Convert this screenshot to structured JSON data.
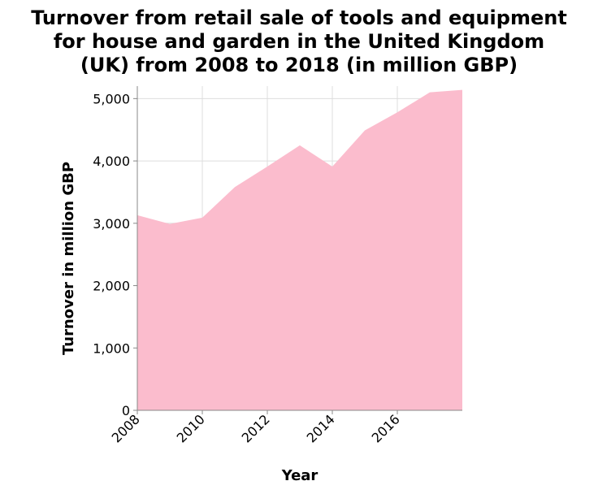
{
  "chart_data": {
    "type": "area",
    "title_lines": [
      "Turnover from retail sale of tools and equipment",
      "for house and garden in the United Kingdom",
      "(UK) from 2008 to 2018 (in million GBP)"
    ],
    "xlabel": "Year",
    "ylabel": "Turnover in million GBP",
    "x": [
      2008,
      2009,
      2010,
      2011,
      2012,
      2013,
      2014,
      2015,
      2016,
      2017,
      2018
    ],
    "series": [
      {
        "values": [
          3130,
          2990,
          3090,
          3580,
          3910,
          4250,
          3910,
          4490,
          4780,
          5100,
          5140
        ]
      }
    ],
    "xlim": [
      2008,
      2018
    ],
    "ylim": [
      0,
      5200
    ],
    "x_ticks": [
      2008,
      2010,
      2012,
      2014,
      2016
    ],
    "x_tick_labels": [
      "2008",
      "2010",
      "2012",
      "2014",
      "2016"
    ],
    "y_ticks": [
      0,
      1000,
      2000,
      3000,
      4000,
      5000
    ],
    "y_tick_labels": [
      "0",
      "1,000",
      "2,000",
      "3,000",
      "4,000",
      "5,000"
    ],
    "grid": true,
    "colors": {
      "area": "#fbbccd"
    }
  }
}
